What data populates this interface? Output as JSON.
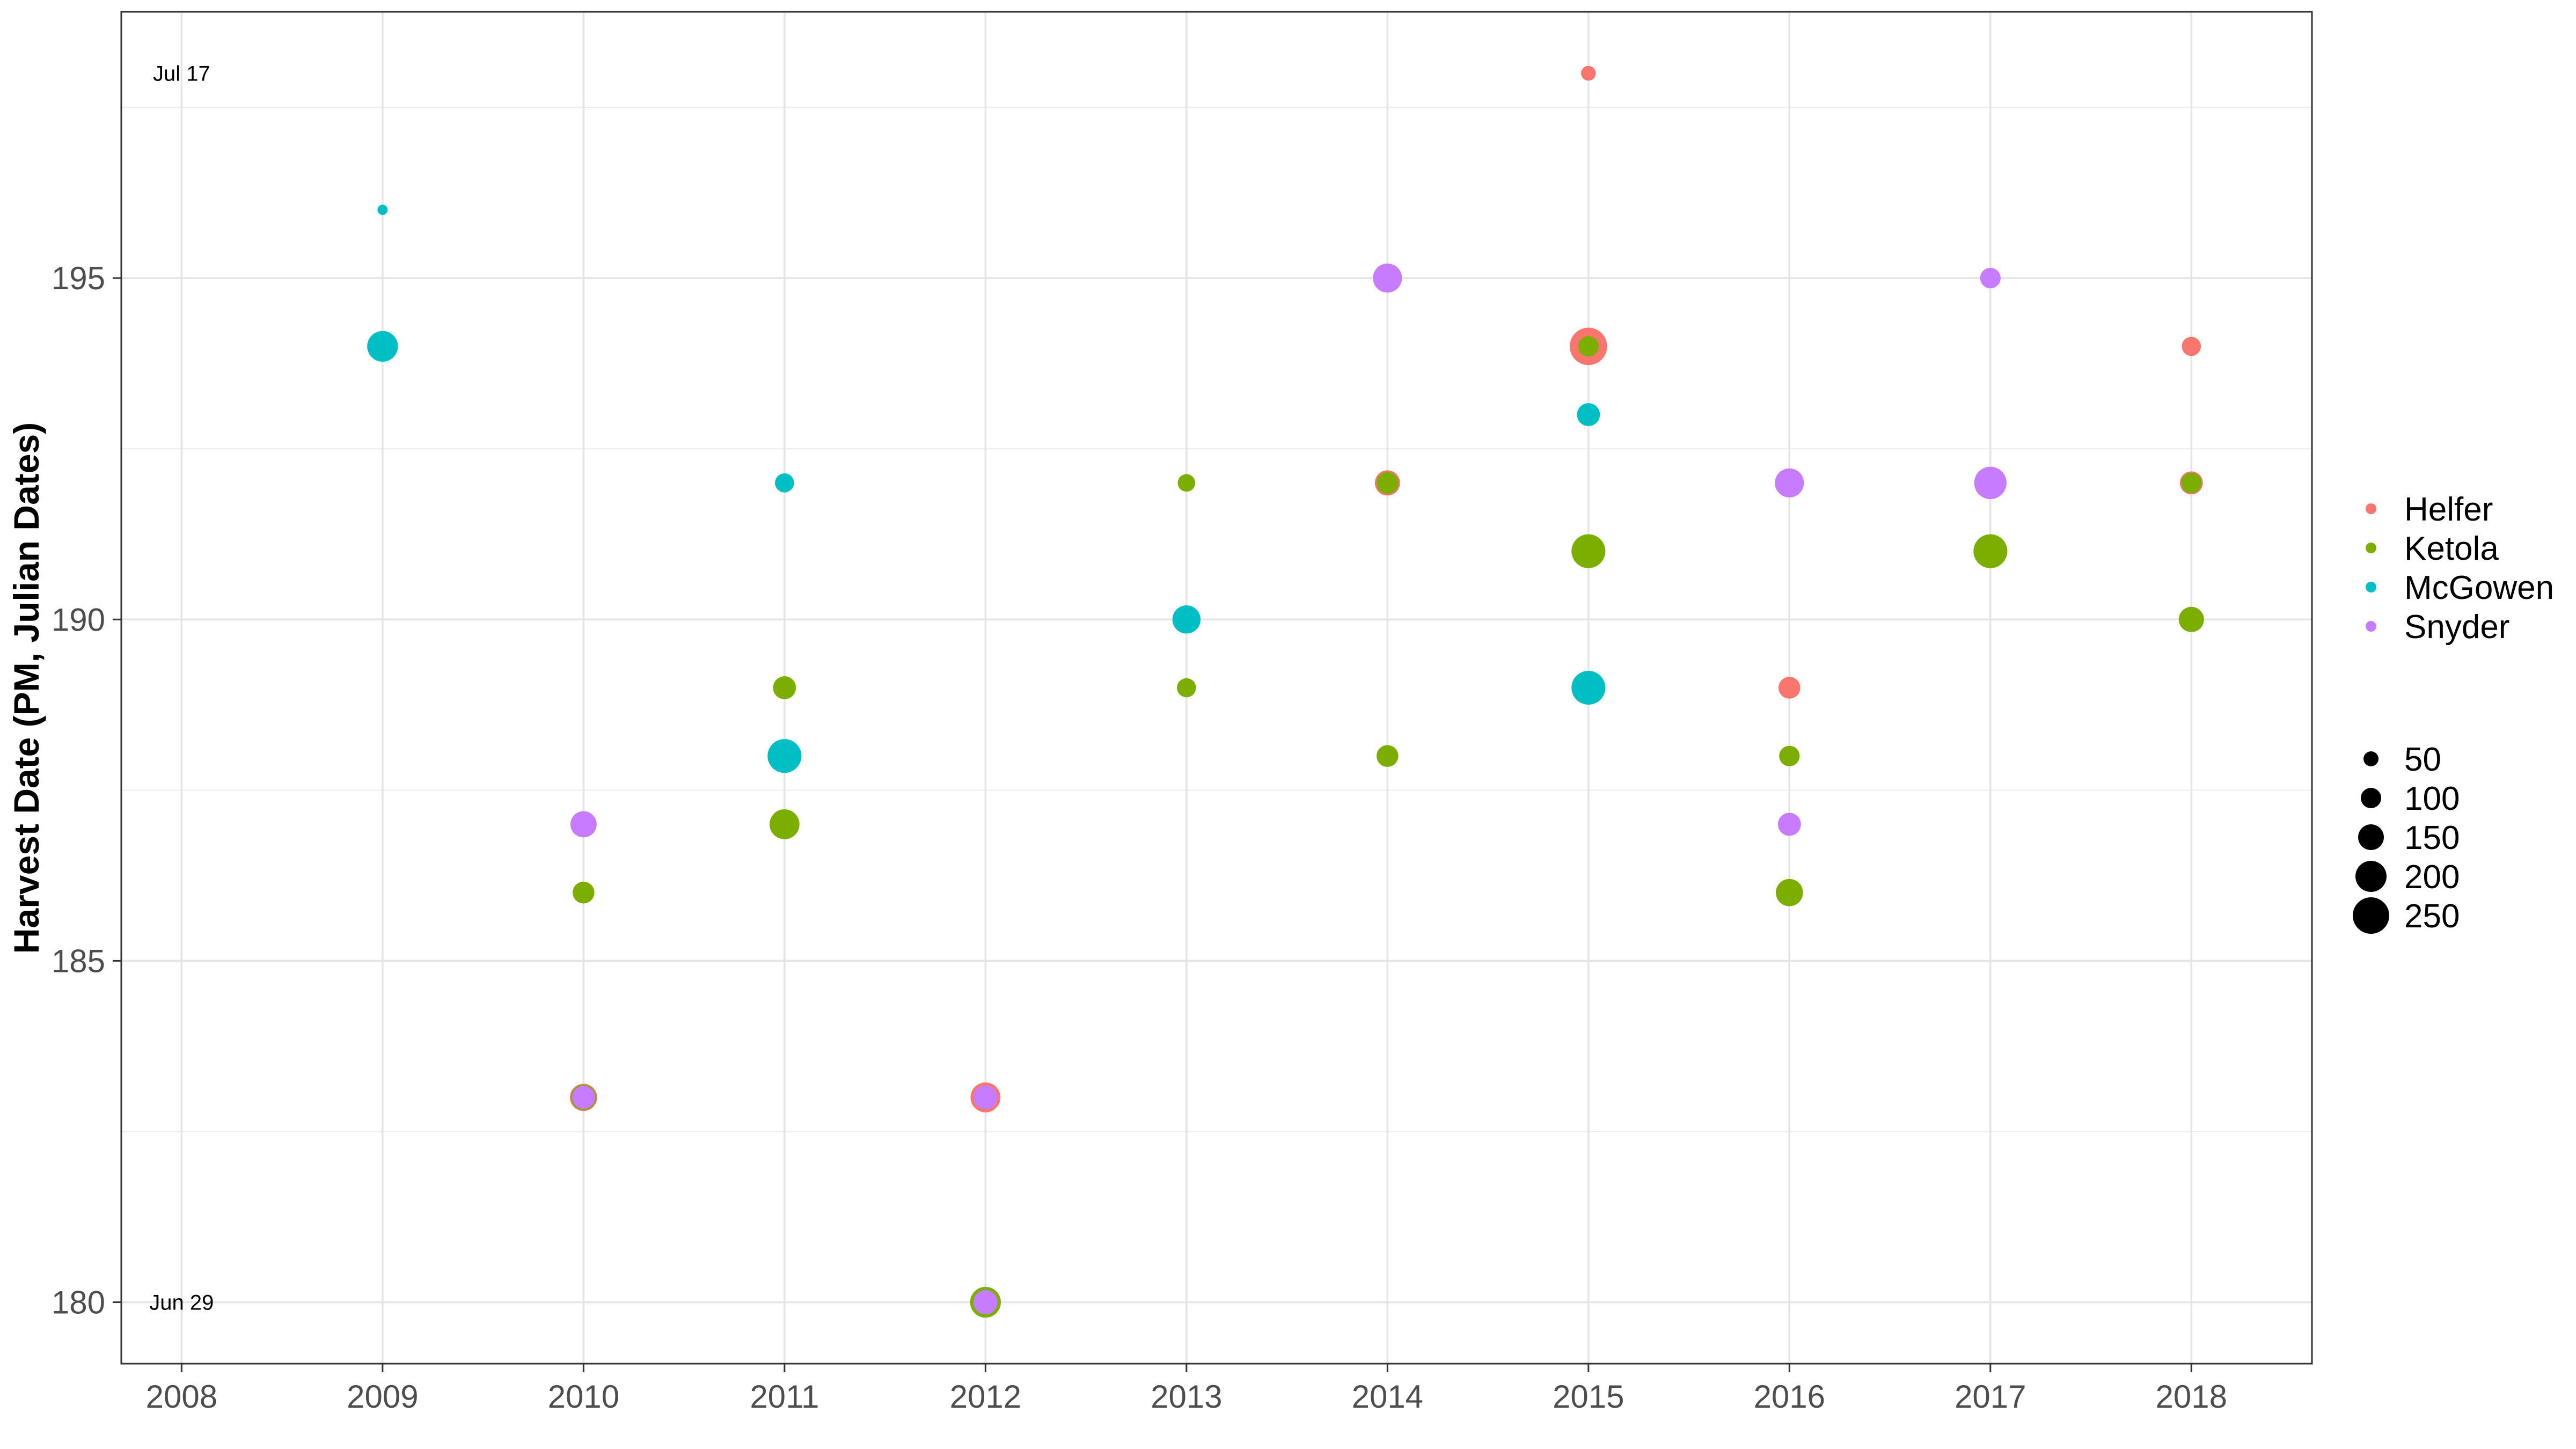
{
  "chart_data": {
    "type": "scatter",
    "title": "",
    "xlabel": "",
    "ylabel": "Harvest Date (PM, Julian Dates)",
    "xlim": [
      2007.7,
      2018.6
    ],
    "ylim": [
      179.1,
      198.9
    ],
    "x_ticks": [
      2008,
      2009,
      2010,
      2011,
      2012,
      2013,
      2014,
      2015,
      2016,
      2017,
      2018
    ],
    "y_ticks": [
      180,
      185,
      190,
      195
    ],
    "grid": true,
    "legend_position": "right",
    "annotations": [
      {
        "text": "Jul 17",
        "x": 2008,
        "y": 198
      },
      {
        "text": "Jun 29",
        "x": 2008,
        "y": 180
      }
    ],
    "series": [
      {
        "name": "Helfer",
        "color": "#F8766D",
        "points": [
          {
            "x": 2010,
            "y": 183,
            "size": 120
          },
          {
            "x": 2012,
            "y": 183,
            "size": 150
          },
          {
            "x": 2014,
            "y": 192,
            "size": 100
          },
          {
            "x": 2015,
            "y": 198,
            "size": 25
          },
          {
            "x": 2015,
            "y": 194,
            "size": 250
          },
          {
            "x": 2016,
            "y": 189,
            "size": 70
          },
          {
            "x": 2018,
            "y": 194,
            "size": 50
          },
          {
            "x": 2018,
            "y": 192,
            "size": 80
          }
        ]
      },
      {
        "name": "Ketola",
        "color": "#7CAE00",
        "points": [
          {
            "x": 2010,
            "y": 186,
            "size": 70
          },
          {
            "x": 2010,
            "y": 183,
            "size": 100
          },
          {
            "x": 2011,
            "y": 189,
            "size": 80
          },
          {
            "x": 2011,
            "y": 187,
            "size": 150
          },
          {
            "x": 2012,
            "y": 180,
            "size": 160
          },
          {
            "x": 2013,
            "y": 192,
            "size": 40
          },
          {
            "x": 2013,
            "y": 189,
            "size": 50
          },
          {
            "x": 2014,
            "y": 192,
            "size": 70
          },
          {
            "x": 2014,
            "y": 188,
            "size": 70
          },
          {
            "x": 2015,
            "y": 194,
            "size": 60
          },
          {
            "x": 2015,
            "y": 191,
            "size": 200
          },
          {
            "x": 2016,
            "y": 188,
            "size": 60
          },
          {
            "x": 2016,
            "y": 186,
            "size": 120
          },
          {
            "x": 2017,
            "y": 191,
            "size": 200
          },
          {
            "x": 2018,
            "y": 192,
            "size": 60
          },
          {
            "x": 2018,
            "y": 190,
            "size": 100
          }
        ]
      },
      {
        "name": "McGowen",
        "color": "#00BFC4",
        "points": [
          {
            "x": 2009,
            "y": 196,
            "size": 8
          },
          {
            "x": 2009,
            "y": 194,
            "size": 160
          },
          {
            "x": 2011,
            "y": 192,
            "size": 50
          },
          {
            "x": 2011,
            "y": 188,
            "size": 200
          },
          {
            "x": 2013,
            "y": 190,
            "size": 130
          },
          {
            "x": 2015,
            "y": 193,
            "size": 80
          },
          {
            "x": 2015,
            "y": 189,
            "size": 200
          }
        ]
      },
      {
        "name": "Snyder",
        "color": "#C77CFF",
        "points": [
          {
            "x": 2010,
            "y": 187,
            "size": 110
          },
          {
            "x": 2010,
            "y": 183,
            "size": 80
          },
          {
            "x": 2012,
            "y": 183,
            "size": 90
          },
          {
            "x": 2012,
            "y": 180,
            "size": 90
          },
          {
            "x": 2014,
            "y": 195,
            "size": 140
          },
          {
            "x": 2016,
            "y": 192,
            "size": 140
          },
          {
            "x": 2016,
            "y": 187,
            "size": 80
          },
          {
            "x": 2017,
            "y": 195,
            "size": 60
          },
          {
            "x": 2017,
            "y": 192,
            "size": 180
          }
        ]
      }
    ],
    "size_legend": {
      "values": [
        50,
        100,
        150,
        200,
        250
      ],
      "labels": [
        "50",
        "100",
        "150",
        "200",
        "250"
      ]
    }
  }
}
